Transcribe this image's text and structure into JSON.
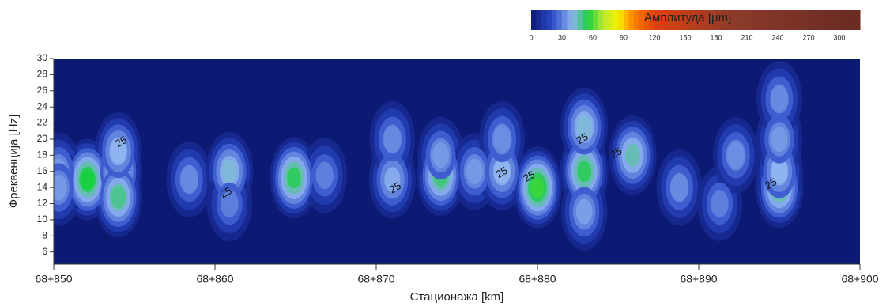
{
  "chart_data": {
    "type": "contour",
    "xlabel": "Стационажа [km]",
    "ylabel": "Фреквенција [Hz]",
    "background_color": "#0d1a73",
    "xlim": [
      68850,
      68900
    ],
    "xticks": [
      {
        "value": 68850,
        "label": "68+850"
      },
      {
        "value": 68860,
        "label": "68+860"
      },
      {
        "value": 68870,
        "label": "68+870"
      },
      {
        "value": 68880,
        "label": "68+880"
      },
      {
        "value": 68890,
        "label": "68+890"
      },
      {
        "value": 68900,
        "label": "68+900"
      }
    ],
    "ylim": [
      4.5,
      30
    ],
    "yticks": [
      6,
      8,
      10,
      12,
      14,
      16,
      18,
      20,
      22,
      24,
      26,
      28,
      30
    ],
    "hotspots": {
      "x": [
        68852.1,
        68854.0,
        68854.0,
        68854.0,
        68850.3,
        68850.3,
        68858.4,
        68860.9,
        68860.9,
        68864.9,
        68866.8,
        68871.0,
        68871.0,
        68874.0,
        68874.0,
        68876.1,
        68877.8,
        68877.8,
        68880.0,
        68882.9,
        68882.9,
        68882.9,
        68885.9,
        68888.8,
        68891.3,
        68892.3,
        68895.0,
        68895.0,
        68895.0,
        68895.0
      ],
      "y": [
        15,
        16,
        12.8,
        18.5,
        16,
        14,
        15,
        16,
        12,
        15.2,
        15.5,
        15,
        20,
        15.5,
        18,
        16,
        16,
        20,
        14,
        16,
        21.5,
        11,
        18,
        14,
        12,
        18,
        14,
        16,
        20,
        25
      ],
      "values": [
        55,
        48,
        48,
        40,
        35,
        35,
        32,
        42,
        30,
        52,
        30,
        38,
        32,
        50,
        35,
        35,
        40,
        33,
        58,
        52,
        42,
        36,
        45,
        32,
        30,
        33,
        50,
        40,
        35,
        32
      ]
    },
    "contour_labels": {
      "x": [
        68854.2,
        68860.7,
        68871.2,
        68877.8,
        68879.5,
        68882.8,
        68884.9,
        68894.5
      ],
      "y": [
        19.6,
        13.3,
        13.9,
        15.8,
        15.3,
        20,
        18.2,
        14.4
      ],
      "values": [
        25,
        25,
        25,
        25,
        25,
        25,
        25,
        25
      ]
    },
    "colorbar": {
      "label": "Амплитуда [µm]",
      "range": [
        0,
        320
      ],
      "ticks": [
        0,
        30,
        60,
        90,
        120,
        150,
        180,
        210,
        240,
        270,
        300
      ],
      "color_stops": [
        {
          "value": 0,
          "color": "#0d1a73"
        },
        {
          "value": 20,
          "color": "#2a48c8"
        },
        {
          "value": 40,
          "color": "#8fb4f0"
        },
        {
          "value": 55,
          "color": "#18d040"
        },
        {
          "value": 70,
          "color": "#b8e830"
        },
        {
          "value": 85,
          "color": "#f8f000"
        },
        {
          "value": 100,
          "color": "#ff8000"
        },
        {
          "value": 120,
          "color": "#e04010"
        },
        {
          "value": 200,
          "color": "#8a3a2a"
        },
        {
          "value": 320,
          "color": "#6a2a22"
        }
      ]
    }
  }
}
